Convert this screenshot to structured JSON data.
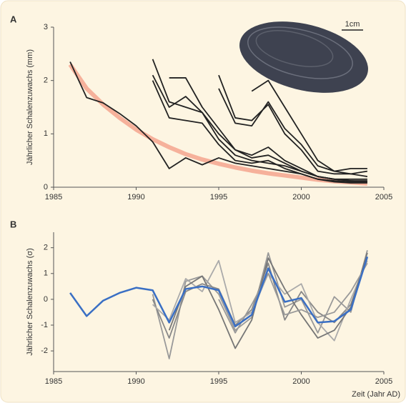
{
  "chart_data": [
    {
      "type": "line",
      "panel": "A",
      "ylabel": "Jährlicher Schalenzuwachs (mm)",
      "scale_label": "1cm",
      "x": [
        1986,
        1987,
        1988,
        1989,
        1990,
        1991,
        1992,
        1993,
        1994,
        1995,
        1996,
        1997,
        1998,
        1999,
        2000,
        2001,
        2002,
        2003,
        2004
      ],
      "xlim": [
        1985,
        2005
      ],
      "xticks": [
        1985,
        1990,
        1995,
        2000,
        2005
      ],
      "ylim": [
        0,
        3
      ],
      "yticks": [
        0,
        1,
        2,
        3
      ],
      "series": [
        {
          "color": "#f4a08a",
          "values": [
            2.3,
            1.85,
            1.55,
            1.3,
            1.08,
            0.9,
            0.75,
            0.62,
            0.52,
            0.44,
            0.37,
            0.31,
            0.26,
            0.22,
            0.18,
            0.14,
            0.11,
            0.09,
            0.07
          ]
        },
        {
          "color": "#222222",
          "values": [
            2.35,
            1.68,
            1.58,
            1.38,
            1.15,
            0.85,
            0.35,
            0.55,
            0.42,
            0.55,
            0.45,
            0.4,
            0.35,
            0.3,
            0.25,
            0.15,
            0.1,
            0.08,
            0.08
          ]
        },
        {
          "color": "#222222",
          "values": [
            null,
            null,
            null,
            null,
            null,
            2.4,
            1.6,
            1.5,
            1.4,
            0.9,
            0.6,
            0.5,
            0.45,
            0.4,
            0.3,
            0.2,
            0.15,
            0.12,
            0.1
          ]
        },
        {
          "color": "#222222",
          "values": [
            null,
            null,
            null,
            null,
            null,
            2.0,
            1.3,
            1.25,
            1.2,
            0.8,
            0.5,
            0.45,
            0.5,
            0.35,
            0.25,
            0.15,
            0.12,
            0.1,
            0.1
          ]
        },
        {
          "color": "#222222",
          "values": [
            null,
            null,
            null,
            null,
            null,
            2.1,
            1.5,
            1.7,
            1.4,
            1.0,
            0.7,
            0.55,
            0.6,
            0.45,
            0.3,
            0.2,
            0.15,
            0.12,
            0.12
          ]
        },
        {
          "color": "#222222",
          "values": [
            null,
            null,
            null,
            null,
            null,
            null,
            2.05,
            2.05,
            1.5,
            1.1,
            0.7,
            0.6,
            0.75,
            0.5,
            0.35,
            0.2,
            0.15,
            0.15,
            0.15
          ]
        },
        {
          "color": "#222222",
          "values": [
            null,
            null,
            null,
            null,
            null,
            null,
            null,
            null,
            null,
            2.1,
            1.3,
            1.25,
            1.55,
            1.0,
            0.7,
            0.3,
            0.25,
            0.25,
            0.3
          ]
        },
        {
          "color": "#222222",
          "values": [
            null,
            null,
            null,
            null,
            null,
            null,
            null,
            null,
            null,
            1.85,
            1.2,
            1.15,
            1.6,
            1.1,
            0.8,
            0.4,
            0.3,
            0.35,
            0.35
          ]
        },
        {
          "color": "#222222",
          "values": [
            null,
            null,
            null,
            null,
            null,
            null,
            null,
            null,
            null,
            null,
            null,
            1.8,
            2.0,
            1.5,
            1.0,
            0.5,
            0.3,
            0.25,
            0.2
          ]
        }
      ]
    },
    {
      "type": "line",
      "panel": "B",
      "ylabel": "Jährlicher Schalenzuwachs (σ)",
      "xlabel": "Zeit (Jahr AD)",
      "x": [
        1986,
        1987,
        1988,
        1989,
        1990,
        1991,
        1992,
        1993,
        1994,
        1995,
        1996,
        1997,
        1998,
        1999,
        2000,
        2001,
        2002,
        2003,
        2004
      ],
      "xlim": [
        1985,
        2005
      ],
      "xticks": [
        1985,
        1990,
        1995,
        2000,
        2005
      ],
      "ylim": [
        -2.8,
        2.6
      ],
      "yticks": [
        -2,
        -1,
        0,
        1,
        2
      ],
      "series": [
        {
          "color": "#999999",
          "values": [
            null,
            null,
            null,
            null,
            null,
            0.2,
            -2.3,
            0.7,
            0.9,
            0.2,
            -1.2,
            -0.7,
            1.8,
            -0.3,
            0.0,
            -1.3,
            0.1,
            -0.5,
            1.9
          ]
        },
        {
          "color": "#888888",
          "values": [
            null,
            null,
            null,
            null,
            null,
            0.0,
            -1.5,
            0.3,
            0.6,
            0.4,
            -1.0,
            -0.4,
            1.4,
            -0.8,
            0.3,
            -0.5,
            -0.9,
            -0.2,
            1.6
          ]
        },
        {
          "color": "#aaaaaa",
          "values": [
            null,
            null,
            null,
            null,
            null,
            -0.2,
            -0.8,
            0.8,
            0.3,
            1.5,
            -0.9,
            -0.5,
            1.0,
            0.2,
            0.6,
            -0.9,
            -1.6,
            0.0,
            1.5
          ]
        },
        {
          "color": "#777777",
          "values": [
            null,
            null,
            null,
            null,
            null,
            null,
            -1.2,
            0.5,
            0.9,
            -0.4,
            -1.9,
            -0.8,
            1.6,
            0.4,
            -0.6,
            -1.5,
            -1.2,
            -0.3,
            1.8
          ]
        },
        {
          "color": "#999999",
          "values": [
            null,
            null,
            null,
            null,
            null,
            null,
            null,
            null,
            null,
            0.0,
            -1.3,
            -0.2,
            1.0,
            -0.6,
            -0.4,
            -0.7,
            -0.5,
            0.3,
            1.4
          ]
        },
        {
          "color": "#3a6fc4",
          "values": [
            0.25,
            -0.65,
            -0.05,
            0.25,
            0.45,
            0.35,
            -0.9,
            0.4,
            0.5,
            0.35,
            -1.05,
            -0.6,
            1.2,
            -0.1,
            0.05,
            -0.9,
            -0.85,
            -0.4,
            1.65
          ]
        }
      ]
    }
  ]
}
